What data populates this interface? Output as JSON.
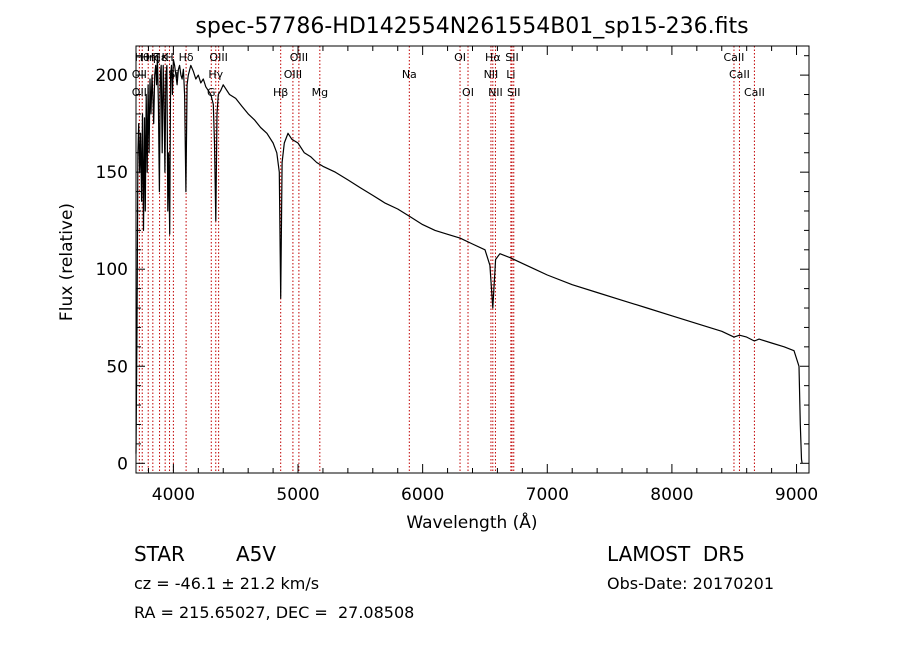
{
  "chart_data": {
    "type": "line",
    "title": "spec-57786-HD142554N261554B01_sp15-236.fits",
    "xlabel": "Wavelength (Å)",
    "ylabel": "Flux (relative)",
    "xlim": [
      3700,
      9100
    ],
    "ylim": [
      -5,
      215
    ],
    "xticks": [
      4000,
      5000,
      6000,
      7000,
      8000,
      9000
    ],
    "yticks": [
      0,
      50,
      100,
      150,
      200
    ],
    "grid": false,
    "series": [
      {
        "x": [
          3700,
          3708,
          3715,
          3722,
          3730,
          3737,
          3745,
          3752,
          3760,
          3768,
          3775,
          3782,
          3790,
          3797,
          3805,
          3812,
          3820,
          3828,
          3835,
          3842,
          3850,
          3858,
          3865,
          3872,
          3880,
          3888,
          3895,
          3902,
          3910,
          3918,
          3925,
          3932,
          3940,
          3948,
          3955,
          3962,
          3970,
          3978,
          3985,
          3992,
          4000,
          4010,
          4020,
          4030,
          4040,
          4050,
          4060,
          4070,
          4080,
          4090,
          4100,
          4110,
          4120,
          4140,
          4160,
          4180,
          4200,
          4220,
          4240,
          4260,
          4280,
          4300,
          4320,
          4330,
          4340,
          4350,
          4360,
          4380,
          4400,
          4420,
          4450,
          4500,
          4550,
          4600,
          4650,
          4700,
          4750,
          4800,
          4830,
          4850,
          4861,
          4872,
          4890,
          4920,
          4950,
          5000,
          5050,
          5100,
          5150,
          5200,
          5300,
          5400,
          5500,
          5600,
          5700,
          5800,
          5900,
          6000,
          6100,
          6200,
          6300,
          6400,
          6500,
          6540,
          6563,
          6585,
          6620,
          6700,
          6800,
          6900,
          7000,
          7200,
          7400,
          7600,
          7800,
          8000,
          8200,
          8400,
          8498,
          8542,
          8600,
          8662,
          8700,
          8800,
          8900,
          8980,
          9020,
          9030,
          9040,
          9045
        ],
        "y": [
          5,
          70,
          160,
          175,
          150,
          170,
          135,
          180,
          120,
          178,
          130,
          190,
          150,
          195,
          160,
          198,
          180,
          200,
          190,
          175,
          200,
          205,
          195,
          210,
          185,
          140,
          200,
          205,
          160,
          205,
          190,
          150,
          200,
          205,
          130,
          160,
          118,
          200,
          205,
          190,
          208,
          205,
          200,
          195,
          203,
          205,
          200,
          198,
          203,
          190,
          140,
          195,
          200,
          205,
          202,
          198,
          200,
          196,
          198,
          194,
          192,
          190,
          185,
          165,
          125,
          180,
          190,
          192,
          195,
          193,
          190,
          188,
          184,
          180,
          177,
          173,
          170,
          165,
          160,
          150,
          85,
          155,
          165,
          170,
          167,
          165,
          160,
          158,
          155,
          153,
          150,
          146,
          142,
          138,
          134,
          131,
          127,
          123,
          120,
          118,
          116,
          113,
          110,
          102,
          80,
          105,
          108,
          106,
          103,
          100,
          97,
          92,
          88,
          84,
          80,
          76,
          72,
          68,
          65,
          66,
          65,
          63,
          64,
          62,
          60,
          58,
          50,
          20,
          2,
          0
        ]
      }
    ],
    "line_markers": [
      {
        "wavelength": 3750,
        "label": "Hθ",
        "row": 0
      },
      {
        "wavelength": 3798,
        "label": "Hη",
        "row": 0
      },
      {
        "wavelength": 3835,
        "label": "Hζ",
        "row": 0
      },
      {
        "wavelength": 3889,
        "label": "Hε",
        "row": 0
      },
      {
        "wavelength": 3934,
        "label": "K",
        "row": 0
      },
      {
        "wavelength": 3969,
        "label": "H",
        "row": 0
      },
      {
        "wavelength": 4102,
        "label": "Hδ",
        "row": 0
      },
      {
        "wavelength": 4340,
        "label": "Hγ",
        "row": 1
      },
      {
        "wavelength": 4861,
        "label": "Hβ",
        "row": 2
      },
      {
        "wavelength": 3727,
        "label": "OII",
        "row": 1
      },
      {
        "wavelength": 3727,
        "label": "OII",
        "row": 2
      },
      {
        "wavelength": 4000,
        "label": "Si",
        "row": 1
      },
      {
        "wavelength": 4304,
        "label": "G",
        "row": 2
      },
      {
        "wavelength": 4363,
        "label": "OIII",
        "row": 0
      },
      {
        "wavelength": 4959,
        "label": "OIII",
        "row": 1
      },
      {
        "wavelength": 5007,
        "label": "OIII",
        "row": 0
      },
      {
        "wavelength": 5175,
        "label": "Mg",
        "row": 2
      },
      {
        "wavelength": 5893,
        "label": "Na",
        "row": 1
      },
      {
        "wavelength": 6300,
        "label": "OI",
        "row": 0
      },
      {
        "wavelength": 6364,
        "label": "OI",
        "row": 2
      },
      {
        "wavelength": 6548,
        "label": "NII",
        "row": 1
      },
      {
        "wavelength": 6563,
        "label": "Hα",
        "row": 0
      },
      {
        "wavelength": 6584,
        "label": "NII",
        "row": 2
      },
      {
        "wavelength": 6708,
        "label": "Li",
        "row": 1
      },
      {
        "wavelength": 6717,
        "label": "SII",
        "row": 0
      },
      {
        "wavelength": 6731,
        "label": "SII",
        "row": 2
      },
      {
        "wavelength": 8498,
        "label": "CaII",
        "row": 0
      },
      {
        "wavelength": 8542,
        "label": "CaII",
        "row": 1
      },
      {
        "wavelength": 8662,
        "label": "CaII",
        "row": 2
      }
    ]
  },
  "info": {
    "class_label": "STAR",
    "subclass": "A5V",
    "survey": "LAMOST  DR5",
    "cz": "cz = -46.1 ± 21.2 km/s",
    "obs_date": "Obs-Date: 20170201",
    "coords": "RA = 215.65027, DEC =  27.08508"
  }
}
